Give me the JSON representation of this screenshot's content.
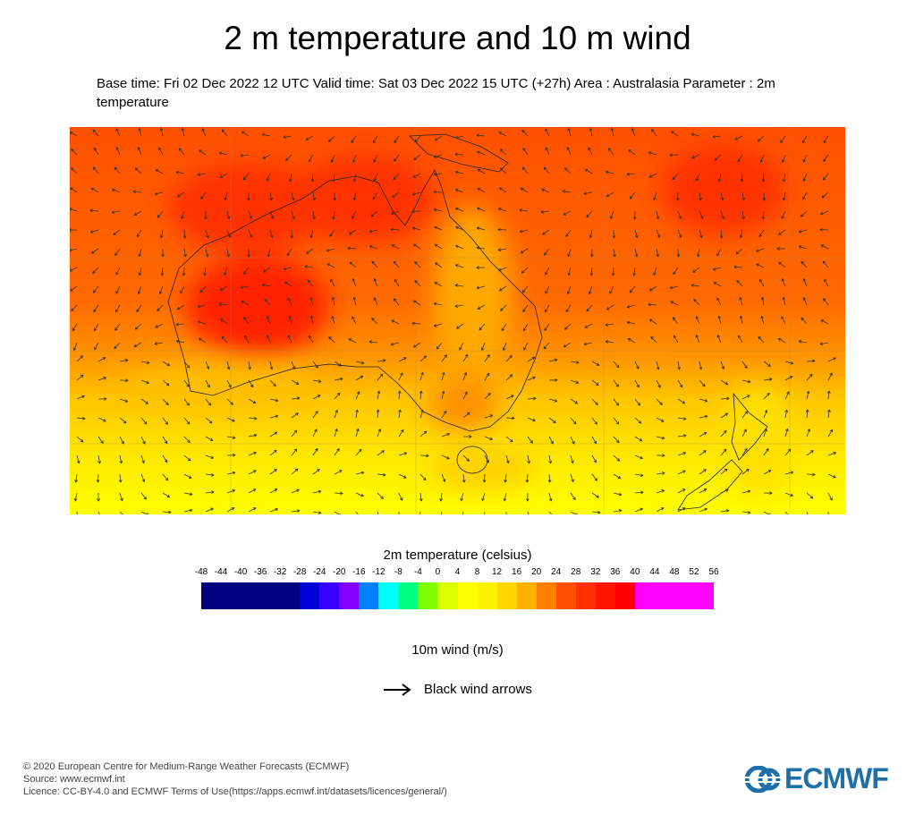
{
  "title": "2 m temperature and 10 m wind",
  "subtitle": "Base time: Fri 02 Dec 2022 12 UTC Valid time: Sat 03 Dec 2022 15 UTC (+27h) Area : Australasia Parameter : 2m temperature",
  "colorbar": {
    "title": "2m temperature (celsius)",
    "ticks": [
      "-48",
      "-44",
      "-40",
      "-36",
      "-32",
      "-28",
      "-24",
      "-20",
      "-16",
      "-12",
      "-8",
      "-4",
      "0",
      "4",
      "8",
      "12",
      "16",
      "20",
      "24",
      "28",
      "32",
      "36",
      "40",
      "44",
      "48",
      "52",
      "56"
    ],
    "segments": [
      {
        "from": -48,
        "to": -28,
        "color": "#000080"
      },
      {
        "from": -28,
        "to": -24,
        "color": "#0000d8"
      },
      {
        "from": -24,
        "to": -20,
        "color": "#3a00ff"
      },
      {
        "from": -20,
        "to": -16,
        "color": "#7f00ff"
      },
      {
        "from": -16,
        "to": -12,
        "color": "#0080ff"
      },
      {
        "from": -12,
        "to": -8,
        "color": "#00ffff"
      },
      {
        "from": -8,
        "to": -4,
        "color": "#00ff80"
      },
      {
        "from": -4,
        "to": 0,
        "color": "#80ff00"
      },
      {
        "from": 0,
        "to": 4,
        "color": "#d9ff00"
      },
      {
        "from": 4,
        "to": 8,
        "color": "#ffff00"
      },
      {
        "from": 8,
        "to": 12,
        "color": "#fff200"
      },
      {
        "from": 12,
        "to": 16,
        "color": "#ffd700"
      },
      {
        "from": 16,
        "to": 20,
        "color": "#ffb000"
      },
      {
        "from": 20,
        "to": 24,
        "color": "#ff8000"
      },
      {
        "from": 24,
        "to": 28,
        "color": "#ff5000"
      },
      {
        "from": 28,
        "to": 32,
        "color": "#ff3000"
      },
      {
        "from": 32,
        "to": 36,
        "color": "#ff1400"
      },
      {
        "from": 36,
        "to": 40,
        "color": "#ff0000"
      },
      {
        "from": 40,
        "to": 56,
        "color": "#ff00ff"
      }
    ]
  },
  "wind": {
    "title": "10m wind (m/s)",
    "legend_label": "Black wind arrows",
    "icon": "arrow-right-icon"
  },
  "footer": {
    "copyright": "© 2020 European Centre for Medium-Range Weather Forecasts (ECMWF)",
    "source": "Source: www.ecmwf.int",
    "licence": "Licence: CC-BY-4.0 and ECMWF Terms of Use(https://apps.ecmwf.int/datasets/licences/general/)"
  },
  "logo": {
    "text": "ECMWF",
    "color": "#1f6fa8"
  }
}
